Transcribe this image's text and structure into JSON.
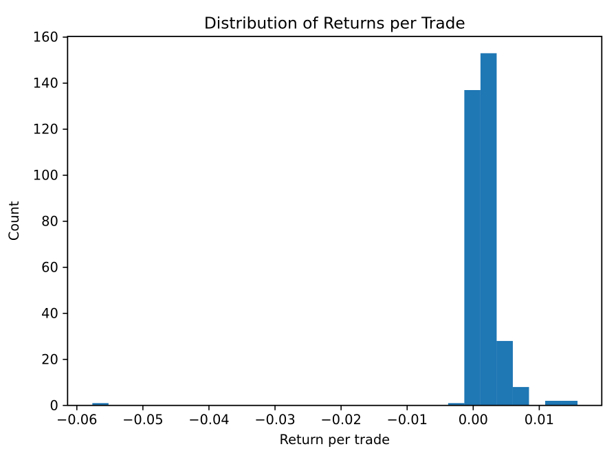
{
  "figure": {
    "background_color": "#ffffff",
    "text_color": "#000000"
  },
  "chart_data": {
    "type": "histogram",
    "title": "Distribution of Returns per Trade",
    "xlabel": "Return per trade",
    "ylabel": "Count",
    "bar_color": "#1f77b4",
    "axis_color": "#000000",
    "grid": false,
    "legend": null,
    "bin_start": -0.05765,
    "bin_width": 0.002448,
    "counts": [
      1,
      0,
      0,
      0,
      0,
      0,
      0,
      0,
      0,
      0,
      0,
      0,
      0,
      0,
      0,
      0,
      0,
      0,
      0,
      0,
      0,
      0,
      1,
      137,
      153,
      28,
      8,
      0,
      2,
      2
    ],
    "xlim": [
      -0.0614,
      0.01946
    ],
    "ylim": [
      0,
      160.3
    ],
    "x_ticks": [
      {
        "value": -0.06,
        "label": "−0.06"
      },
      {
        "value": -0.05,
        "label": "−0.05"
      },
      {
        "value": -0.04,
        "label": "−0.04"
      },
      {
        "value": -0.03,
        "label": "−0.03"
      },
      {
        "value": -0.02,
        "label": "−0.02"
      },
      {
        "value": -0.01,
        "label": "−0.01"
      },
      {
        "value": 0.0,
        "label": "0.00"
      },
      {
        "value": 0.01,
        "label": "0.01"
      }
    ],
    "y_ticks": [
      {
        "value": 0,
        "label": "0"
      },
      {
        "value": 20,
        "label": "20"
      },
      {
        "value": 40,
        "label": "40"
      },
      {
        "value": 60,
        "label": "60"
      },
      {
        "value": 80,
        "label": "80"
      },
      {
        "value": 100,
        "label": "100"
      },
      {
        "value": 120,
        "label": "120"
      },
      {
        "value": 140,
        "label": "140"
      },
      {
        "value": 160,
        "label": "160"
      }
    ]
  }
}
